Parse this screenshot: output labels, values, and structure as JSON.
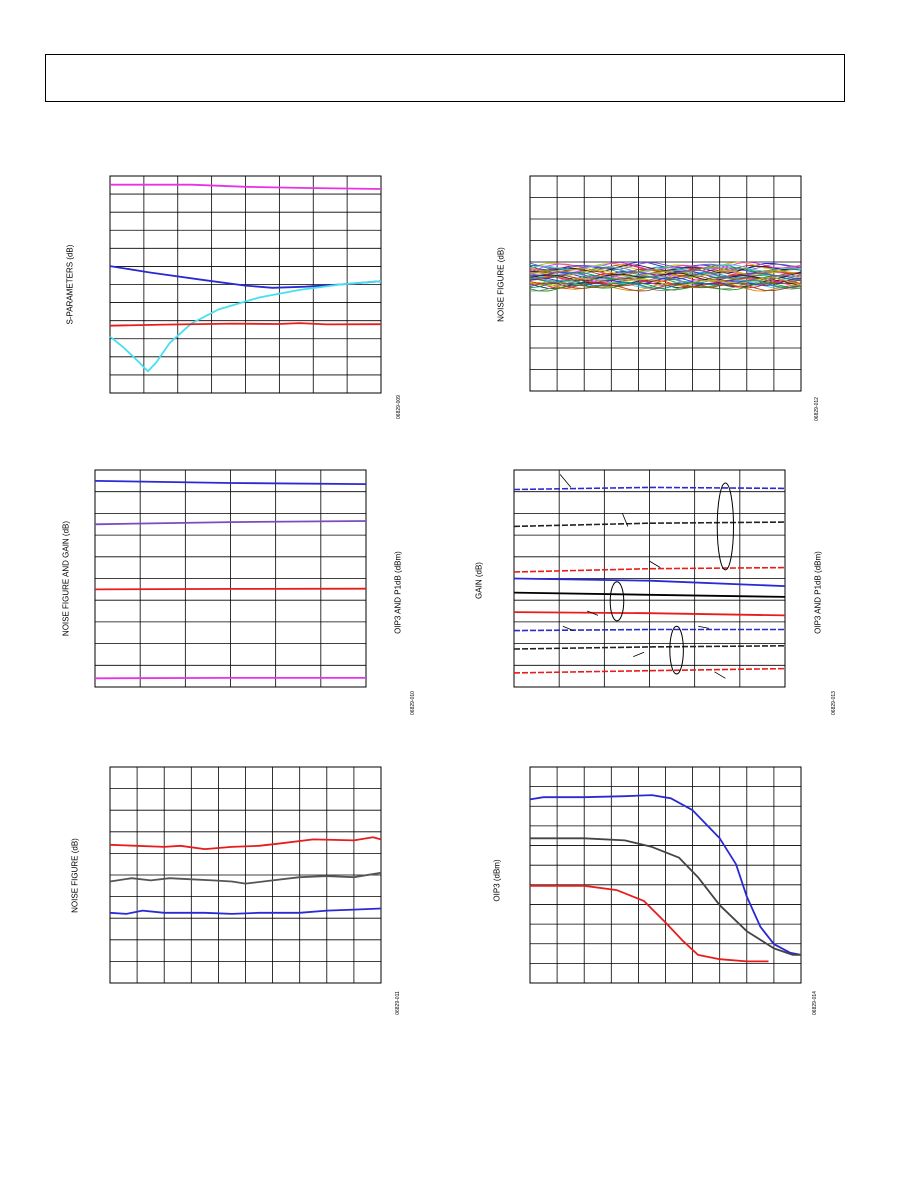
{
  "page": {
    "header_box": ""
  },
  "chart_data": [
    {
      "type": "line",
      "ylabel": "S-PARAMETERS (dB)",
      "figure_id": "06829-009",
      "grid": true,
      "series": [
        {
          "color": "#e832e8",
          "values": [
            [
              0,
              0.04
            ],
            [
              0.3,
              0.04
            ],
            [
              0.5,
              0.05
            ],
            [
              0.7,
              0.055
            ],
            [
              1,
              0.06
            ]
          ]
        },
        {
          "color": "#2a2ad4",
          "values": [
            [
              0,
              0.415
            ],
            [
              0.15,
              0.445
            ],
            [
              0.35,
              0.48
            ],
            [
              0.5,
              0.505
            ],
            [
              0.6,
              0.515
            ],
            [
              0.72,
              0.51
            ],
            [
              0.85,
              0.5
            ],
            [
              1,
              0.485
            ]
          ]
        },
        {
          "color": "#45e0f0",
          "values": [
            [
              0,
              0.74
            ],
            [
              0.05,
              0.79
            ],
            [
              0.1,
              0.85
            ],
            [
              0.14,
              0.9
            ],
            [
              0.17,
              0.86
            ],
            [
              0.22,
              0.77
            ],
            [
              0.3,
              0.68
            ],
            [
              0.4,
              0.615
            ],
            [
              0.55,
              0.56
            ],
            [
              0.7,
              0.525
            ],
            [
              0.85,
              0.5
            ],
            [
              1,
              0.485
            ]
          ]
        },
        {
          "color": "#e81c1c",
          "values": [
            [
              0,
              0.69
            ],
            [
              0.2,
              0.685
            ],
            [
              0.45,
              0.68
            ],
            [
              0.62,
              0.682
            ],
            [
              0.7,
              0.678
            ],
            [
              0.8,
              0.684
            ],
            [
              1,
              0.683
            ]
          ]
        }
      ]
    },
    {
      "type": "line",
      "ylabel": "NOISE FIGURE (dB)",
      "figure_id": "06829-012",
      "grid": true,
      "series": []
    },
    {
      "type": "line",
      "ylabel": "NOISE FIGURE AND GAIN (dB)",
      "y2label": "OIP3 AND P1dB (dBm)",
      "figure_id": "06829-010",
      "grid": true,
      "series": [
        {
          "color": "#2a2ad4",
          "values": [
            [
              0,
              0.05
            ],
            [
              0.5,
              0.06
            ],
            [
              1,
              0.065
            ]
          ]
        },
        {
          "color": "#7a4cc0",
          "values": [
            [
              0,
              0.25
            ],
            [
              0.5,
              0.24
            ],
            [
              1,
              0.235
            ]
          ]
        },
        {
          "color": "#e81c1c",
          "values": [
            [
              0,
              0.55
            ],
            [
              0.5,
              0.548
            ],
            [
              1,
              0.547
            ]
          ]
        },
        {
          "color": "#e832e8",
          "values": [
            [
              0,
              0.96
            ],
            [
              0.5,
              0.958
            ],
            [
              1,
              0.958
            ]
          ]
        }
      ]
    },
    {
      "type": "line",
      "ylabel": "GAIN (dB)",
      "y2label": "OIP3 AND P1dB (dBm)",
      "figure_id": "06829-013",
      "grid": true,
      "series": [
        {
          "color": "#2a2ad4",
          "dashed": true,
          "values": [
            [
              0,
              0.09
            ],
            [
              0.5,
              0.08
            ],
            [
              1,
              0.085
            ]
          ]
        },
        {
          "color": "#222222",
          "dashed": true,
          "values": [
            [
              0,
              0.26
            ],
            [
              0.5,
              0.245
            ],
            [
              1,
              0.24
            ]
          ]
        },
        {
          "color": "#e81c1c",
          "dashed": true,
          "values": [
            [
              0,
              0.47
            ],
            [
              0.5,
              0.455
            ],
            [
              1,
              0.45
            ]
          ]
        },
        {
          "color": "#2a2ad4",
          "values": [
            [
              0,
              0.5
            ],
            [
              0.5,
              0.51
            ],
            [
              1,
              0.535
            ]
          ]
        },
        {
          "color": "#000000",
          "values": [
            [
              0,
              0.565
            ],
            [
              0.5,
              0.575
            ],
            [
              1,
              0.585
            ]
          ]
        },
        {
          "color": "#e81c1c",
          "values": [
            [
              0,
              0.655
            ],
            [
              0.5,
              0.66
            ],
            [
              1,
              0.67
            ]
          ]
        },
        {
          "color": "#2a2ad4",
          "dashed": true,
          "values": [
            [
              0,
              0.74
            ],
            [
              0.5,
              0.735
            ],
            [
              1,
              0.735
            ]
          ]
        },
        {
          "color": "#222222",
          "dashed": true,
          "values": [
            [
              0,
              0.825
            ],
            [
              0.5,
              0.815
            ],
            [
              1,
              0.81
            ]
          ]
        },
        {
          "color": "#e81c1c",
          "dashed": true,
          "values": [
            [
              0,
              0.935
            ],
            [
              0.5,
              0.925
            ],
            [
              1,
              0.915
            ]
          ]
        }
      ]
    },
    {
      "type": "line",
      "ylabel": "NOISE FIGURE (dB)",
      "figure_id": "06829-011",
      "grid": true,
      "series": [
        {
          "color": "#e81c1c",
          "values": [
            [
              0,
              0.36
            ],
            [
              0.2,
              0.37
            ],
            [
              0.26,
              0.365
            ],
            [
              0.35,
              0.38
            ],
            [
              0.45,
              0.37
            ],
            [
              0.55,
              0.365
            ],
            [
              0.62,
              0.355
            ],
            [
              0.75,
              0.335
            ],
            [
              0.9,
              0.34
            ],
            [
              0.97,
              0.325
            ],
            [
              1,
              0.335
            ]
          ]
        },
        {
          "color": "#555555",
          "values": [
            [
              0,
              0.53
            ],
            [
              0.08,
              0.515
            ],
            [
              0.15,
              0.525
            ],
            [
              0.22,
              0.515
            ],
            [
              0.3,
              0.52
            ],
            [
              0.38,
              0.525
            ],
            [
              0.45,
              0.53
            ],
            [
              0.5,
              0.54
            ],
            [
              0.6,
              0.525
            ],
            [
              0.7,
              0.51
            ],
            [
              0.8,
              0.505
            ],
            [
              0.9,
              0.51
            ],
            [
              1,
              0.49
            ]
          ]
        },
        {
          "color": "#2a2ad4",
          "values": [
            [
              0,
              0.675
            ],
            [
              0.06,
              0.68
            ],
            [
              0.12,
              0.665
            ],
            [
              0.2,
              0.675
            ],
            [
              0.35,
              0.675
            ],
            [
              0.45,
              0.68
            ],
            [
              0.55,
              0.675
            ],
            [
              0.7,
              0.675
            ],
            [
              0.8,
              0.665
            ],
            [
              0.9,
              0.66
            ],
            [
              1,
              0.655
            ]
          ]
        }
      ]
    },
    {
      "type": "line",
      "ylabel": "OIP3 (dBm)",
      "figure_id": "06829-014",
      "grid": true,
      "series": [
        {
          "color": "#2a2ad4",
          "values": [
            [
              0,
              0.15
            ],
            [
              0.05,
              0.14
            ],
            [
              0.2,
              0.14
            ],
            [
              0.35,
              0.135
            ],
            [
              0.45,
              0.13
            ],
            [
              0.52,
              0.145
            ],
            [
              0.6,
              0.2
            ],
            [
              0.7,
              0.33
            ],
            [
              0.76,
              0.45
            ],
            [
              0.8,
              0.6
            ],
            [
              0.85,
              0.74
            ],
            [
              0.9,
              0.82
            ],
            [
              0.96,
              0.86
            ],
            [
              1,
              0.87
            ]
          ]
        },
        {
          "color": "#444444",
          "values": [
            [
              0,
              0.33
            ],
            [
              0.2,
              0.33
            ],
            [
              0.35,
              0.34
            ],
            [
              0.45,
              0.37
            ],
            [
              0.55,
              0.42
            ],
            [
              0.62,
              0.51
            ],
            [
              0.7,
              0.64
            ],
            [
              0.8,
              0.76
            ],
            [
              0.9,
              0.84
            ],
            [
              0.97,
              0.87
            ],
            [
              1,
              0.87
            ]
          ]
        },
        {
          "color": "#e81c1c",
          "values": [
            [
              0,
              0.55
            ],
            [
              0.2,
              0.55
            ],
            [
              0.32,
              0.57
            ],
            [
              0.42,
              0.62
            ],
            [
              0.5,
              0.72
            ],
            [
              0.56,
              0.8
            ],
            [
              0.62,
              0.87
            ],
            [
              0.7,
              0.89
            ],
            [
              0.8,
              0.9
            ],
            [
              0.88,
              0.9
            ]
          ]
        }
      ]
    }
  ]
}
